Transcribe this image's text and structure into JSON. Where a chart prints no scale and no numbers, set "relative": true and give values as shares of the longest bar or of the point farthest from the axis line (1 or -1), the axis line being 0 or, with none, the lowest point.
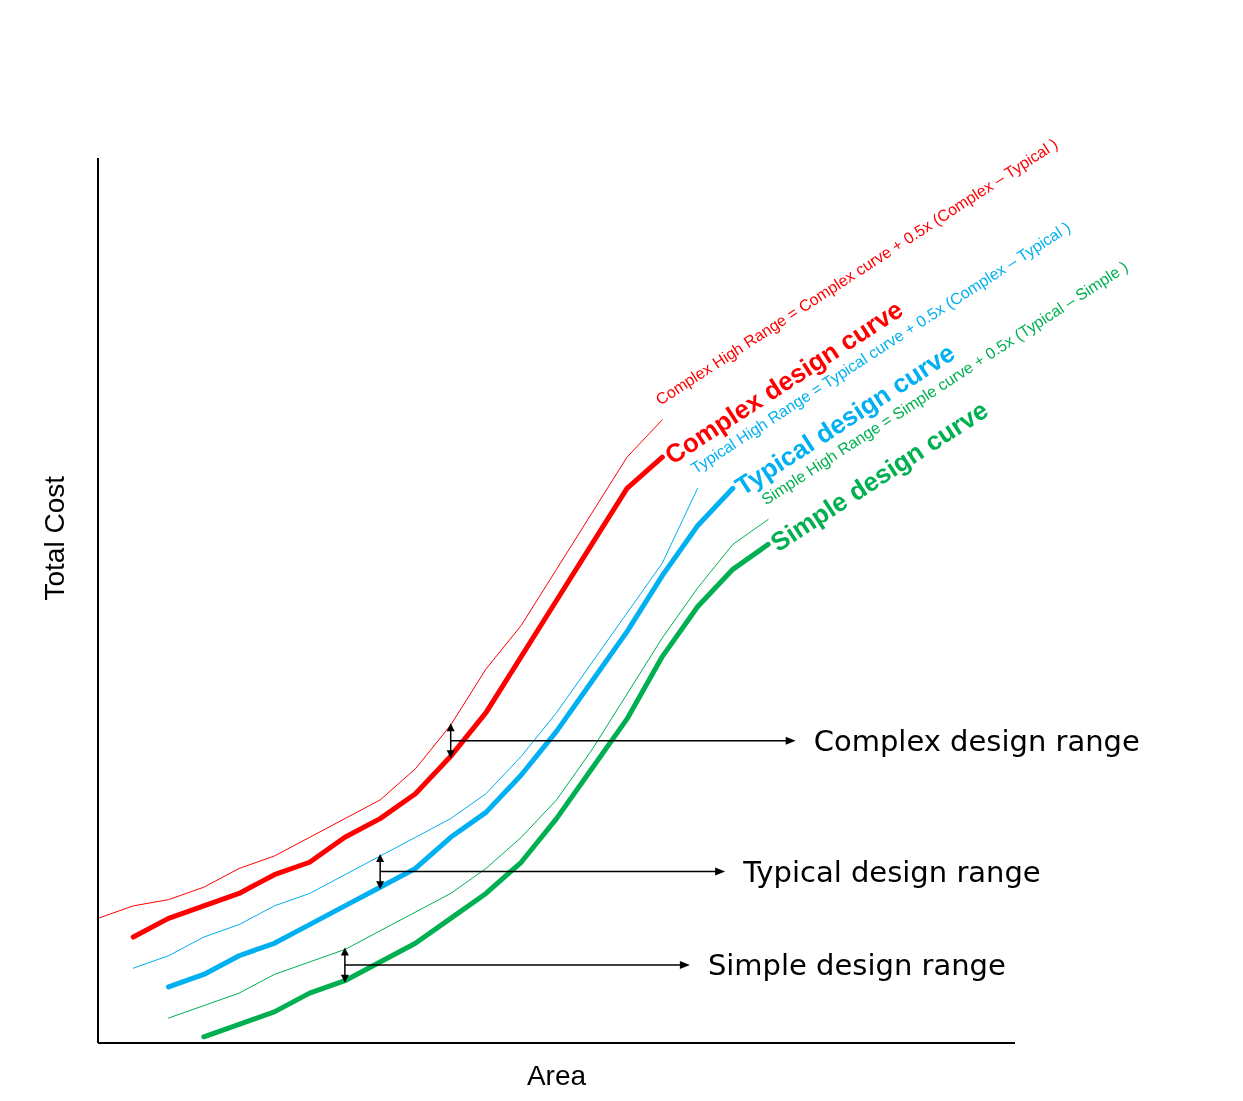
{
  "chart_data": {
    "type": "line",
    "relative": true,
    "xlabel": "Area",
    "ylabel": "Total Cost",
    "legend": false,
    "categories": [
      null,
      null,
      null,
      null,
      null,
      null,
      null,
      null,
      null,
      null,
      null,
      null,
      null,
      null,
      null,
      null,
      null,
      null,
      null,
      null,
      null,
      null,
      null,
      null,
      null,
      null,
      null
    ],
    "series": [
      {
        "name": "Complex High Range = Complex curve + 0.5x (Complex – Typical )",
        "color": "#ff0000",
        "values": [
          0.2,
          0.22,
          0.23,
          0.25,
          0.28,
          0.3,
          0.33,
          0.36,
          0.39,
          0.44,
          0.51,
          0.6,
          0.67,
          0.76,
          0.85,
          0.94,
          1,
          null,
          null,
          null,
          null,
          null,
          null,
          null,
          null,
          null,
          null
        ]
      },
      {
        "name": "Complex design curve",
        "color": "#ff0000",
        "values": [
          null,
          0.17,
          0.2,
          0.22,
          0.24,
          0.27,
          0.29,
          0.33,
          0.36,
          0.4,
          0.46,
          0.53,
          0.62,
          0.71,
          0.8,
          0.89,
          0.94,
          null,
          null,
          null,
          null,
          null,
          null,
          null,
          null,
          null,
          null
        ]
      },
      {
        "name": "Typical High Range = Typical curve + 0.5x (Complex – Typical )",
        "color": "#00b0f0",
        "values": [
          null,
          0.12,
          0.14,
          0.17,
          0.19,
          0.22,
          0.24,
          0.27,
          0.3,
          0.33,
          0.36,
          0.4,
          0.46,
          0.53,
          0.61,
          0.69,
          0.77,
          0.89,
          null,
          null,
          null,
          null,
          null,
          null,
          null,
          null,
          null
        ]
      },
      {
        "name": "Typical design curve",
        "color": "#00b0f0",
        "values": [
          null,
          null,
          0.09,
          0.11,
          0.14,
          0.16,
          0.19,
          0.22,
          0.25,
          0.28,
          0.33,
          0.37,
          0.43,
          0.5,
          0.58,
          0.66,
          0.75,
          0.83,
          0.89,
          null,
          null,
          null,
          null,
          null,
          null,
          null,
          null
        ]
      },
      {
        "name": "Simple High Range = Simple curve + 0.5x (Typical – Simple )",
        "color": "#00b050",
        "values": [
          null,
          null,
          0.04,
          0.06,
          0.08,
          0.11,
          0.13,
          0.15,
          0.18,
          0.21,
          0.24,
          0.28,
          0.33,
          0.39,
          0.47,
          0.56,
          0.65,
          0.73,
          0.8,
          0.84,
          null,
          null,
          null,
          null,
          null,
          null,
          null
        ]
      },
      {
        "name": "Simple design curve",
        "color": "#00b050",
        "values": [
          null,
          null,
          null,
          0.01,
          0.03,
          0.05,
          0.08,
          0.1,
          0.13,
          0.16,
          0.2,
          0.24,
          0.29,
          0.36,
          0.44,
          0.52,
          0.62,
          0.7,
          0.76,
          0.8,
          null,
          null,
          null,
          null,
          null,
          null,
          null
        ]
      }
    ],
    "annotations": [
      "Complex design range",
      "Typical design range",
      "Simple design range"
    ]
  }
}
